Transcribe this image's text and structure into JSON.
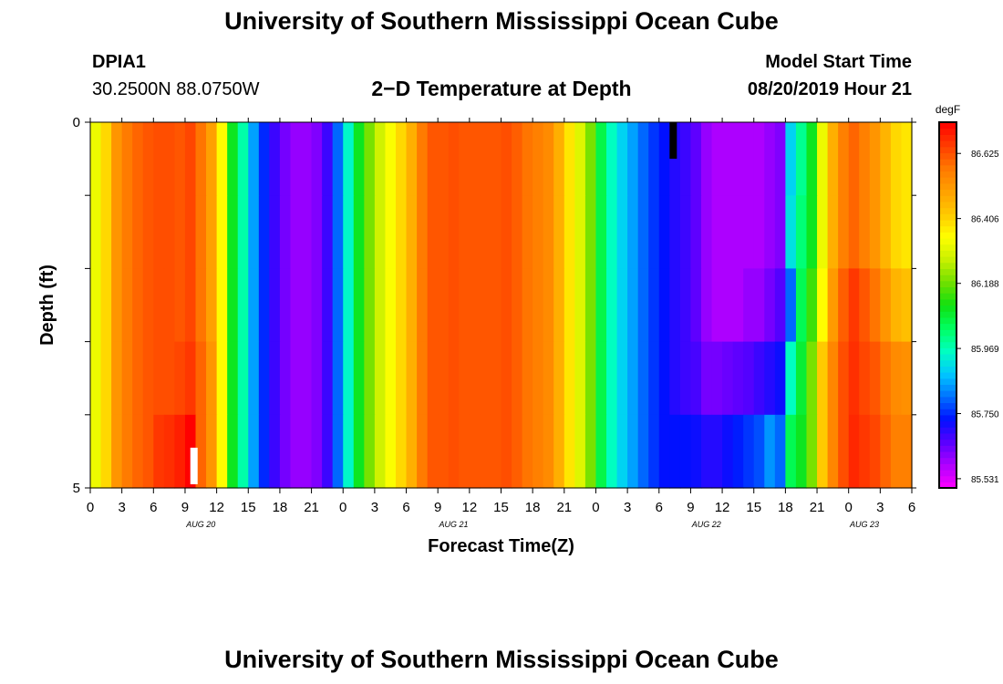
{
  "header": {
    "title": "University of Southern Mississippi Ocean Cube",
    "station_id": "DPIA1",
    "coordinates": "30.2500N 88.0750W",
    "plot_title": "2−D Temperature at Depth",
    "model_start_label": "Model Start Time",
    "model_start_value": "08/20/2019 Hour 21"
  },
  "footer": {
    "title": "University of Southern Mississippi Ocean Cube"
  },
  "chart_data": {
    "type": "heatmap",
    "title": "2−D Temperature at Depth",
    "xlabel": "Forecast Time(Z)",
    "ylabel": "Depth (ft)",
    "x_tick_labels": [
      "0",
      "3",
      "6",
      "9",
      "12",
      "15",
      "18",
      "21",
      "0",
      "3",
      "6",
      "9",
      "12",
      "15",
      "18",
      "21",
      "0",
      "3",
      "6",
      "9",
      "12",
      "15",
      "18",
      "21",
      "0",
      "3",
      "6"
    ],
    "date_labels": [
      "AUG 20",
      "AUG 21",
      "AUG 22",
      "AUG 23"
    ],
    "y_tick_labels": [
      "0",
      "5"
    ],
    "y_range": [
      0,
      5
    ],
    "colorbar": {
      "unit": "degF",
      "range": [
        85.5,
        86.73
      ],
      "tick_values": [
        85.531,
        85.75,
        85.969,
        86.188,
        86.406,
        86.625
      ],
      "tick_labels": [
        "85.531",
        "85.750",
        "85.969",
        "86.188",
        "86.406",
        "86.625"
      ],
      "colors": [
        "#ff00ff",
        "#b000ff",
        "#5a00ff",
        "#0010ff",
        "#0070ff",
        "#00c8ff",
        "#00ffc0",
        "#00ff60",
        "#10e010",
        "#70e000",
        "#c8f000",
        "#ffff00",
        "#ffc800",
        "#ffa000",
        "#ff7800",
        "#ff3c00",
        "#ff0000"
      ]
    },
    "time_hours": [
      0,
      1,
      2,
      3,
      4,
      5,
      6,
      7,
      8,
      9,
      10,
      11,
      12,
      13,
      14,
      15,
      16,
      17,
      18,
      19,
      20,
      21,
      22,
      23,
      24,
      25,
      26,
      27,
      28,
      29,
      30,
      31,
      32,
      33,
      34,
      35,
      36,
      37,
      38,
      39,
      40,
      41,
      42,
      43,
      44,
      45,
      46,
      47,
      48,
      49,
      50,
      51,
      52,
      53,
      54,
      55,
      56,
      57,
      58,
      59,
      60,
      61,
      62,
      63,
      64,
      65,
      66,
      67,
      68,
      69,
      70,
      71,
      72,
      73,
      74,
      75,
      76,
      77,
      78
    ],
    "depth_levels_ft": [
      0.5,
      1.5,
      2.5,
      3.5,
      4.5
    ],
    "surface_temperature_degF": [
      86.32,
      86.4,
      86.52,
      86.57,
      86.6,
      86.62,
      86.63,
      86.63,
      86.62,
      86.64,
      86.58,
      86.5,
      86.35,
      86.1,
      85.98,
      85.85,
      85.75,
      85.68,
      85.63,
      85.6,
      85.6,
      85.62,
      85.68,
      85.8,
      85.95,
      86.1,
      86.2,
      86.28,
      86.34,
      86.4,
      86.47,
      86.57,
      86.62,
      86.62,
      86.63,
      86.62,
      86.62,
      86.62,
      86.62,
      86.63,
      86.61,
      86.58,
      86.56,
      86.54,
      86.47,
      86.38,
      86.3,
      86.2,
      86.06,
      85.96,
      85.9,
      85.85,
      85.8,
      85.76,
      85.73,
      85.7,
      85.68,
      85.65,
      85.6,
      85.58,
      85.58,
      85.58,
      85.58,
      85.58,
      85.6,
      85.62,
      85.9,
      86.0,
      86.1,
      86.32,
      86.47,
      86.56,
      86.6,
      86.56,
      86.52,
      86.46,
      86.4,
      86.38,
      86.36
    ],
    "depth_offsets_degF": [
      [
        0,
        0,
        0,
        0,
        0,
        0,
        0,
        0,
        0,
        0,
        0,
        0,
        0,
        0,
        0,
        0,
        0,
        0,
        0,
        0,
        0,
        0,
        0,
        0,
        0,
        0,
        0,
        0,
        0,
        0,
        0,
        0,
        0,
        0,
        0,
        0,
        0,
        0,
        0,
        0,
        0,
        0,
        0,
        0,
        0,
        0,
        0,
        0,
        0,
        0,
        0,
        0,
        0,
        0,
        0,
        0,
        0,
        0,
        0,
        0,
        0,
        0,
        0,
        0,
        0,
        0,
        0,
        0,
        0,
        0,
        0,
        0,
        0,
        0,
        0,
        0,
        0,
        0,
        0
      ],
      [
        0,
        0,
        0,
        0,
        0,
        0,
        0,
        0,
        0,
        0,
        0,
        0,
        0,
        0,
        0,
        0,
        0,
        0,
        0,
        0,
        0,
        0,
        0,
        0,
        0,
        0,
        0,
        0,
        0,
        0,
        0,
        0,
        0,
        0,
        0,
        0,
        0,
        0,
        0,
        0,
        0,
        0,
        0,
        0,
        0,
        0,
        0,
        0,
        0,
        0,
        0,
        0,
        0,
        0,
        0,
        0,
        0,
        0,
        0,
        0,
        0,
        0,
        0,
        0,
        0,
        0,
        0.02,
        0.02,
        0,
        0,
        0,
        0,
        0,
        0,
        0,
        0,
        0,
        0,
        0
      ],
      [
        0,
        0,
        0,
        0,
        0,
        0,
        0,
        0,
        0,
        0,
        0,
        0,
        0,
        0,
        0,
        0,
        0,
        0,
        0,
        0,
        0,
        0,
        0,
        0,
        0,
        0,
        0,
        0,
        0,
        0,
        0,
        0,
        0,
        0,
        0,
        0,
        0,
        0,
        0,
        0,
        0,
        0,
        0,
        0,
        0,
        0,
        0,
        0,
        0,
        0,
        0,
        0,
        0,
        0,
        0,
        0,
        0,
        0,
        0,
        0,
        0,
        0,
        0.02,
        0.02,
        0.03,
        0.04,
        -0.1,
        0.05,
        0.05,
        0.03,
        0.04,
        0.05,
        0.06,
        0.06,
        0.06,
        0.06,
        0.06,
        0.06,
        0.06
      ],
      [
        0,
        0,
        0,
        0,
        0,
        0,
        0,
        0,
        0.02,
        0.02,
        0.02,
        0.02,
        0,
        0,
        0,
        0,
        0,
        0,
        0,
        0,
        0,
        0,
        0,
        0,
        0,
        0,
        0,
        0,
        0,
        0,
        0,
        0,
        0,
        0,
        0,
        0,
        0,
        0,
        0,
        0,
        0,
        0,
        0,
        0,
        0,
        0,
        0,
        0,
        0,
        0,
        0,
        0,
        0,
        0,
        0,
        0,
        0,
        0.02,
        0.03,
        0.05,
        0.06,
        0.07,
        0.08,
        0.1,
        0.1,
        0.1,
        0.06,
        0.08,
        0.1,
        0.1,
        0.08,
        0.07,
        0.07,
        0.08,
        0.1,
        0.12,
        0.14,
        0.15,
        0.15
      ],
      [
        0,
        0,
        0,
        0,
        0,
        0,
        0.03,
        0.04,
        0.07,
        0.1,
        0.02,
        0.02,
        0,
        0,
        0,
        0,
        0,
        0,
        0,
        0,
        0,
        0,
        0,
        0,
        0,
        0,
        0,
        0,
        0,
        0,
        0,
        0,
        0,
        0,
        0,
        0,
        0,
        0,
        0,
        0,
        0,
        0,
        0,
        0,
        0,
        0,
        0,
        0,
        0,
        0,
        0,
        0,
        0,
        0,
        0,
        0.03,
        0.05,
        0.07,
        0.1,
        0.12,
        0.14,
        0.16,
        0.18,
        0.2,
        0.24,
        0.18,
        0.15,
        0.1,
        0.1,
        0.1,
        0.08,
        0.07,
        0.08,
        0.1,
        0.12,
        0.14,
        0.16,
        0.18,
        0.18
      ]
    ],
    "missing_cells": [
      {
        "hour": 55,
        "depth_ft": 0.25,
        "color": "#000000"
      },
      {
        "hour": 9.5,
        "depth_ft": 4.7,
        "color": "#ffffff"
      }
    ]
  }
}
